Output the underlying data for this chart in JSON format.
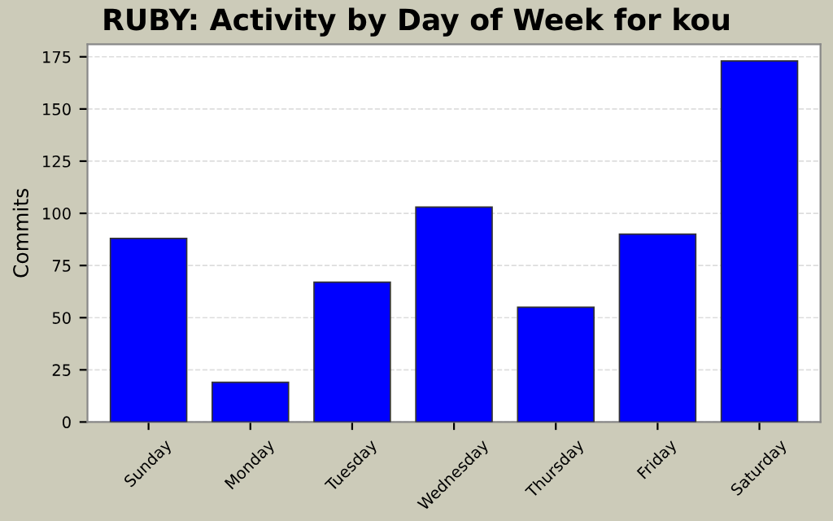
{
  "chart_data": {
    "type": "bar",
    "title": "RUBY: Activity by Day of Week for kou",
    "ylabel": "Commits",
    "categories": [
      "Sunday",
      "Monday",
      "Tuesday",
      "Wednesday",
      "Thursday",
      "Friday",
      "Saturday"
    ],
    "values": [
      88,
      19,
      67,
      103,
      55,
      90,
      173
    ],
    "color": "#0000ff",
    "ylim": [
      0,
      181
    ],
    "yticks": [
      0,
      25,
      50,
      75,
      100,
      125,
      150,
      175
    ],
    "grid": "y",
    "legend": false
  }
}
